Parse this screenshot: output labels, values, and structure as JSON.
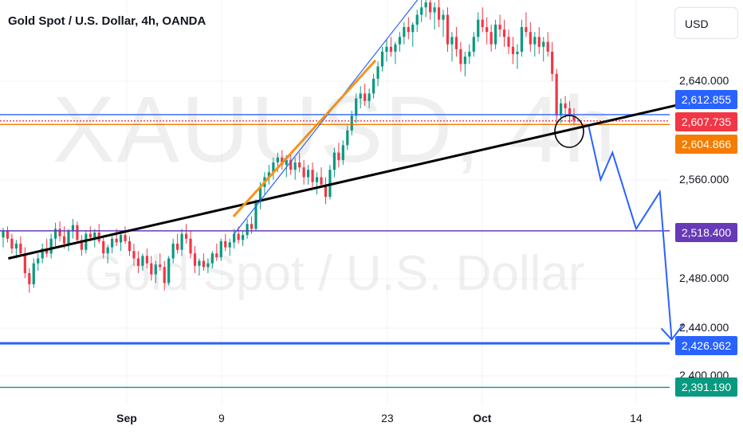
{
  "header": {
    "title": "Gold Spot / U.S. Dollar, 4h, OANDA",
    "currency": "USD"
  },
  "watermark": {
    "symbol": "XAUUSD, 4h",
    "name": "Gold Spot / U.S. Dollar"
  },
  "colors": {
    "up": "#089981",
    "down": "#f23645",
    "trend": "#000000",
    "orange": "#f7931a",
    "blue": "#2962ff",
    "purple": "#673ab7",
    "green_line": "#089981"
  },
  "chart_data": {
    "type": "candlestick",
    "symbol": "XAUUSD",
    "interval": "4h",
    "source": "OANDA",
    "y_axis": {
      "ticks": [
        "2,640.000",
        "2,560.000",
        "2,480.000",
        "2,440.000",
        "2,400.000"
      ],
      "range": [
        2385,
        2720
      ]
    },
    "x_axis": {
      "ticks": [
        "Sep",
        "9",
        "23",
        "Oct",
        "14"
      ]
    },
    "price_labels": [
      {
        "value": "2,612.855",
        "color": "#2962ff"
      },
      {
        "value": "2,607.735",
        "color": "#f23645"
      },
      {
        "value": "2,604.866",
        "color": "#f57c00"
      },
      {
        "value": "2,518.400",
        "color": "#673ab7"
      },
      {
        "value": "2,426.962",
        "color": "#2962ff"
      },
      {
        "value": "2,391.190",
        "color": "#089981"
      }
    ],
    "horizontal_lines": [
      {
        "price": 2612.855,
        "color": "#2962ff"
      },
      {
        "price": 2607.735,
        "color": "#f23645",
        "style": "dotted"
      },
      {
        "price": 2604.866,
        "color": "#f57c00"
      },
      {
        "price": 2518.4,
        "color": "#673ab7"
      },
      {
        "price": 2426.962,
        "color": "#2962ff"
      },
      {
        "price": 2391.19,
        "color": "#089981"
      }
    ],
    "trend_lines": [
      {
        "from": [
          "Aug 22",
          2496
        ],
        "to": [
          "Oct 19",
          2624
        ],
        "color": "#000000"
      },
      {
        "from": [
          "Sep 10",
          2515
        ],
        "to": [
          "Sep 27",
          2724
        ],
        "color": "#2962ff"
      },
      {
        "from": [
          "Sep 10",
          2530
        ],
        "to": [
          "Sep 22",
          2657
        ],
        "color": "#f7931a"
      }
    ],
    "projection_path": [
      [
        "Oct 10",
        2603
      ],
      [
        "Oct 11",
        2560
      ],
      [
        "Oct 12",
        2582
      ],
      [
        "Oct 14",
        2520
      ],
      [
        "Oct 16",
        2550
      ],
      [
        "Oct 17",
        2430
      ]
    ],
    "candles": [
      [
        2513,
        2521,
        2505,
        2518
      ],
      [
        2518,
        2522,
        2509,
        2512
      ],
      [
        2512,
        2516,
        2500,
        2504
      ],
      [
        2504,
        2511,
        2496,
        2508
      ],
      [
        2508,
        2514,
        2498,
        2500
      ],
      [
        2500,
        2505,
        2480,
        2484
      ],
      [
        2484,
        2488,
        2468,
        2475
      ],
      [
        2475,
        2496,
        2472,
        2492
      ],
      [
        2492,
        2500,
        2486,
        2496
      ],
      [
        2496,
        2508,
        2492,
        2504
      ],
      [
        2504,
        2512,
        2497,
        2500
      ],
      [
        2500,
        2516,
        2496,
        2512
      ],
      [
        2512,
        2525,
        2506,
        2520
      ],
      [
        2520,
        2526,
        2510,
        2514
      ],
      [
        2514,
        2522,
        2504,
        2508
      ],
      [
        2508,
        2520,
        2502,
        2518
      ],
      [
        2518,
        2528,
        2512,
        2523
      ],
      [
        2523,
        2526,
        2508,
        2511
      ],
      [
        2511,
        2515,
        2498,
        2503
      ],
      [
        2503,
        2518,
        2500,
        2516
      ],
      [
        2516,
        2522,
        2510,
        2513
      ],
      [
        2513,
        2520,
        2505,
        2517
      ],
      [
        2517,
        2524,
        2508,
        2510
      ],
      [
        2510,
        2513,
        2496,
        2500
      ],
      [
        2500,
        2507,
        2492,
        2505
      ],
      [
        2505,
        2514,
        2500,
        2512
      ],
      [
        2512,
        2520,
        2506,
        2509
      ],
      [
        2509,
        2516,
        2502,
        2515
      ],
      [
        2515,
        2522,
        2508,
        2510
      ],
      [
        2510,
        2514,
        2498,
        2502
      ],
      [
        2502,
        2508,
        2490,
        2496
      ],
      [
        2496,
        2502,
        2484,
        2490
      ],
      [
        2490,
        2500,
        2486,
        2498
      ],
      [
        2498,
        2504,
        2488,
        2492
      ],
      [
        2492,
        2498,
        2478,
        2483
      ],
      [
        2483,
        2494,
        2476,
        2491
      ],
      [
        2491,
        2500,
        2486,
        2489
      ],
      [
        2489,
        2494,
        2470,
        2476
      ],
      [
        2476,
        2498,
        2474,
        2496
      ],
      [
        2496,
        2512,
        2492,
        2508
      ],
      [
        2508,
        2516,
        2500,
        2503
      ],
      [
        2503,
        2520,
        2498,
        2516
      ],
      [
        2516,
        2524,
        2508,
        2512
      ],
      [
        2512,
        2518,
        2496,
        2500
      ],
      [
        2500,
        2506,
        2484,
        2490
      ],
      [
        2490,
        2496,
        2482,
        2494
      ],
      [
        2494,
        2500,
        2486,
        2489
      ],
      [
        2489,
        2496,
        2484,
        2492
      ],
      [
        2492,
        2502,
        2488,
        2500
      ],
      [
        2500,
        2508,
        2494,
        2497
      ],
      [
        2497,
        2512,
        2494,
        2510
      ],
      [
        2510,
        2516,
        2502,
        2505
      ],
      [
        2505,
        2512,
        2498,
        2509
      ],
      [
        2509,
        2520,
        2504,
        2516
      ],
      [
        2516,
        2522,
        2508,
        2511
      ],
      [
        2511,
        2518,
        2506,
        2515
      ],
      [
        2515,
        2528,
        2512,
        2524
      ],
      [
        2524,
        2530,
        2516,
        2520
      ],
      [
        2520,
        2544,
        2518,
        2542
      ],
      [
        2542,
        2558,
        2536,
        2554
      ],
      [
        2554,
        2566,
        2548,
        2562
      ],
      [
        2562,
        2572,
        2556,
        2566
      ],
      [
        2566,
        2578,
        2560,
        2574
      ],
      [
        2574,
        2582,
        2566,
        2578
      ],
      [
        2578,
        2584,
        2568,
        2572
      ],
      [
        2572,
        2580,
        2562,
        2576
      ],
      [
        2576,
        2582,
        2564,
        2568
      ],
      [
        2568,
        2578,
        2560,
        2574
      ],
      [
        2574,
        2582,
        2566,
        2570
      ],
      [
        2570,
        2576,
        2556,
        2562
      ],
      [
        2562,
        2572,
        2556,
        2568
      ],
      [
        2568,
        2574,
        2554,
        2558
      ],
      [
        2558,
        2566,
        2548,
        2562
      ],
      [
        2562,
        2570,
        2554,
        2556
      ],
      [
        2556,
        2562,
        2540,
        2546
      ],
      [
        2546,
        2572,
        2544,
        2568
      ],
      [
        2568,
        2586,
        2562,
        2582
      ],
      [
        2582,
        2590,
        2570,
        2576
      ],
      [
        2576,
        2592,
        2572,
        2588
      ],
      [
        2588,
        2604,
        2584,
        2600
      ],
      [
        2600,
        2616,
        2596,
        2612
      ],
      [
        2612,
        2630,
        2606,
        2626
      ],
      [
        2626,
        2636,
        2618,
        2630
      ],
      [
        2630,
        2638,
        2620,
        2624
      ],
      [
        2624,
        2634,
        2618,
        2630
      ],
      [
        2630,
        2646,
        2626,
        2642
      ],
      [
        2642,
        2656,
        2636,
        2652
      ],
      [
        2652,
        2668,
        2648,
        2664
      ],
      [
        2664,
        2674,
        2656,
        2668
      ],
      [
        2668,
        2676,
        2660,
        2664
      ],
      [
        2664,
        2672,
        2654,
        2670
      ],
      [
        2670,
        2680,
        2664,
        2676
      ],
      [
        2676,
        2688,
        2670,
        2684
      ],
      [
        2684,
        2692,
        2674,
        2680
      ],
      [
        2680,
        2688,
        2668,
        2686
      ],
      [
        2686,
        2698,
        2680,
        2694
      ],
      [
        2694,
        2708,
        2688,
        2700
      ],
      [
        2700,
        2716,
        2692,
        2704
      ],
      [
        2704,
        2710,
        2690,
        2696
      ],
      [
        2696,
        2704,
        2682,
        2700
      ],
      [
        2700,
        2706,
        2684,
        2690
      ],
      [
        2690,
        2698,
        2676,
        2694
      ],
      [
        2694,
        2700,
        2664,
        2670
      ],
      [
        2670,
        2680,
        2656,
        2676
      ],
      [
        2676,
        2684,
        2660,
        2666
      ],
      [
        2666,
        2672,
        2648,
        2654
      ],
      [
        2654,
        2664,
        2644,
        2660
      ],
      [
        2660,
        2670,
        2654,
        2664
      ],
      [
        2664,
        2680,
        2660,
        2676
      ],
      [
        2676,
        2696,
        2672,
        2690
      ],
      [
        2690,
        2700,
        2680,
        2684
      ],
      [
        2684,
        2692,
        2670,
        2680
      ],
      [
        2680,
        2686,
        2664,
        2670
      ],
      [
        2670,
        2690,
        2666,
        2686
      ],
      [
        2686,
        2694,
        2676,
        2682
      ],
      [
        2682,
        2690,
        2668,
        2676
      ],
      [
        2676,
        2682,
        2662,
        2668
      ],
      [
        2668,
        2676,
        2654,
        2662
      ],
      [
        2662,
        2670,
        2650,
        2664
      ],
      [
        2664,
        2690,
        2660,
        2684
      ],
      [
        2684,
        2696,
        2676,
        2680
      ],
      [
        2680,
        2688,
        2664,
        2670
      ],
      [
        2670,
        2680,
        2660,
        2676
      ],
      [
        2676,
        2684,
        2662,
        2668
      ],
      [
        2668,
        2676,
        2656,
        2672
      ],
      [
        2672,
        2680,
        2660,
        2664
      ],
      [
        2664,
        2672,
        2640,
        2646
      ],
      [
        2646,
        2650,
        2606,
        2612
      ],
      [
        2612,
        2626,
        2606,
        2622
      ],
      [
        2622,
        2628,
        2610,
        2618
      ],
      [
        2618,
        2624,
        2606,
        2612
      ],
      [
        2612,
        2618,
        2604,
        2608
      ]
    ]
  }
}
